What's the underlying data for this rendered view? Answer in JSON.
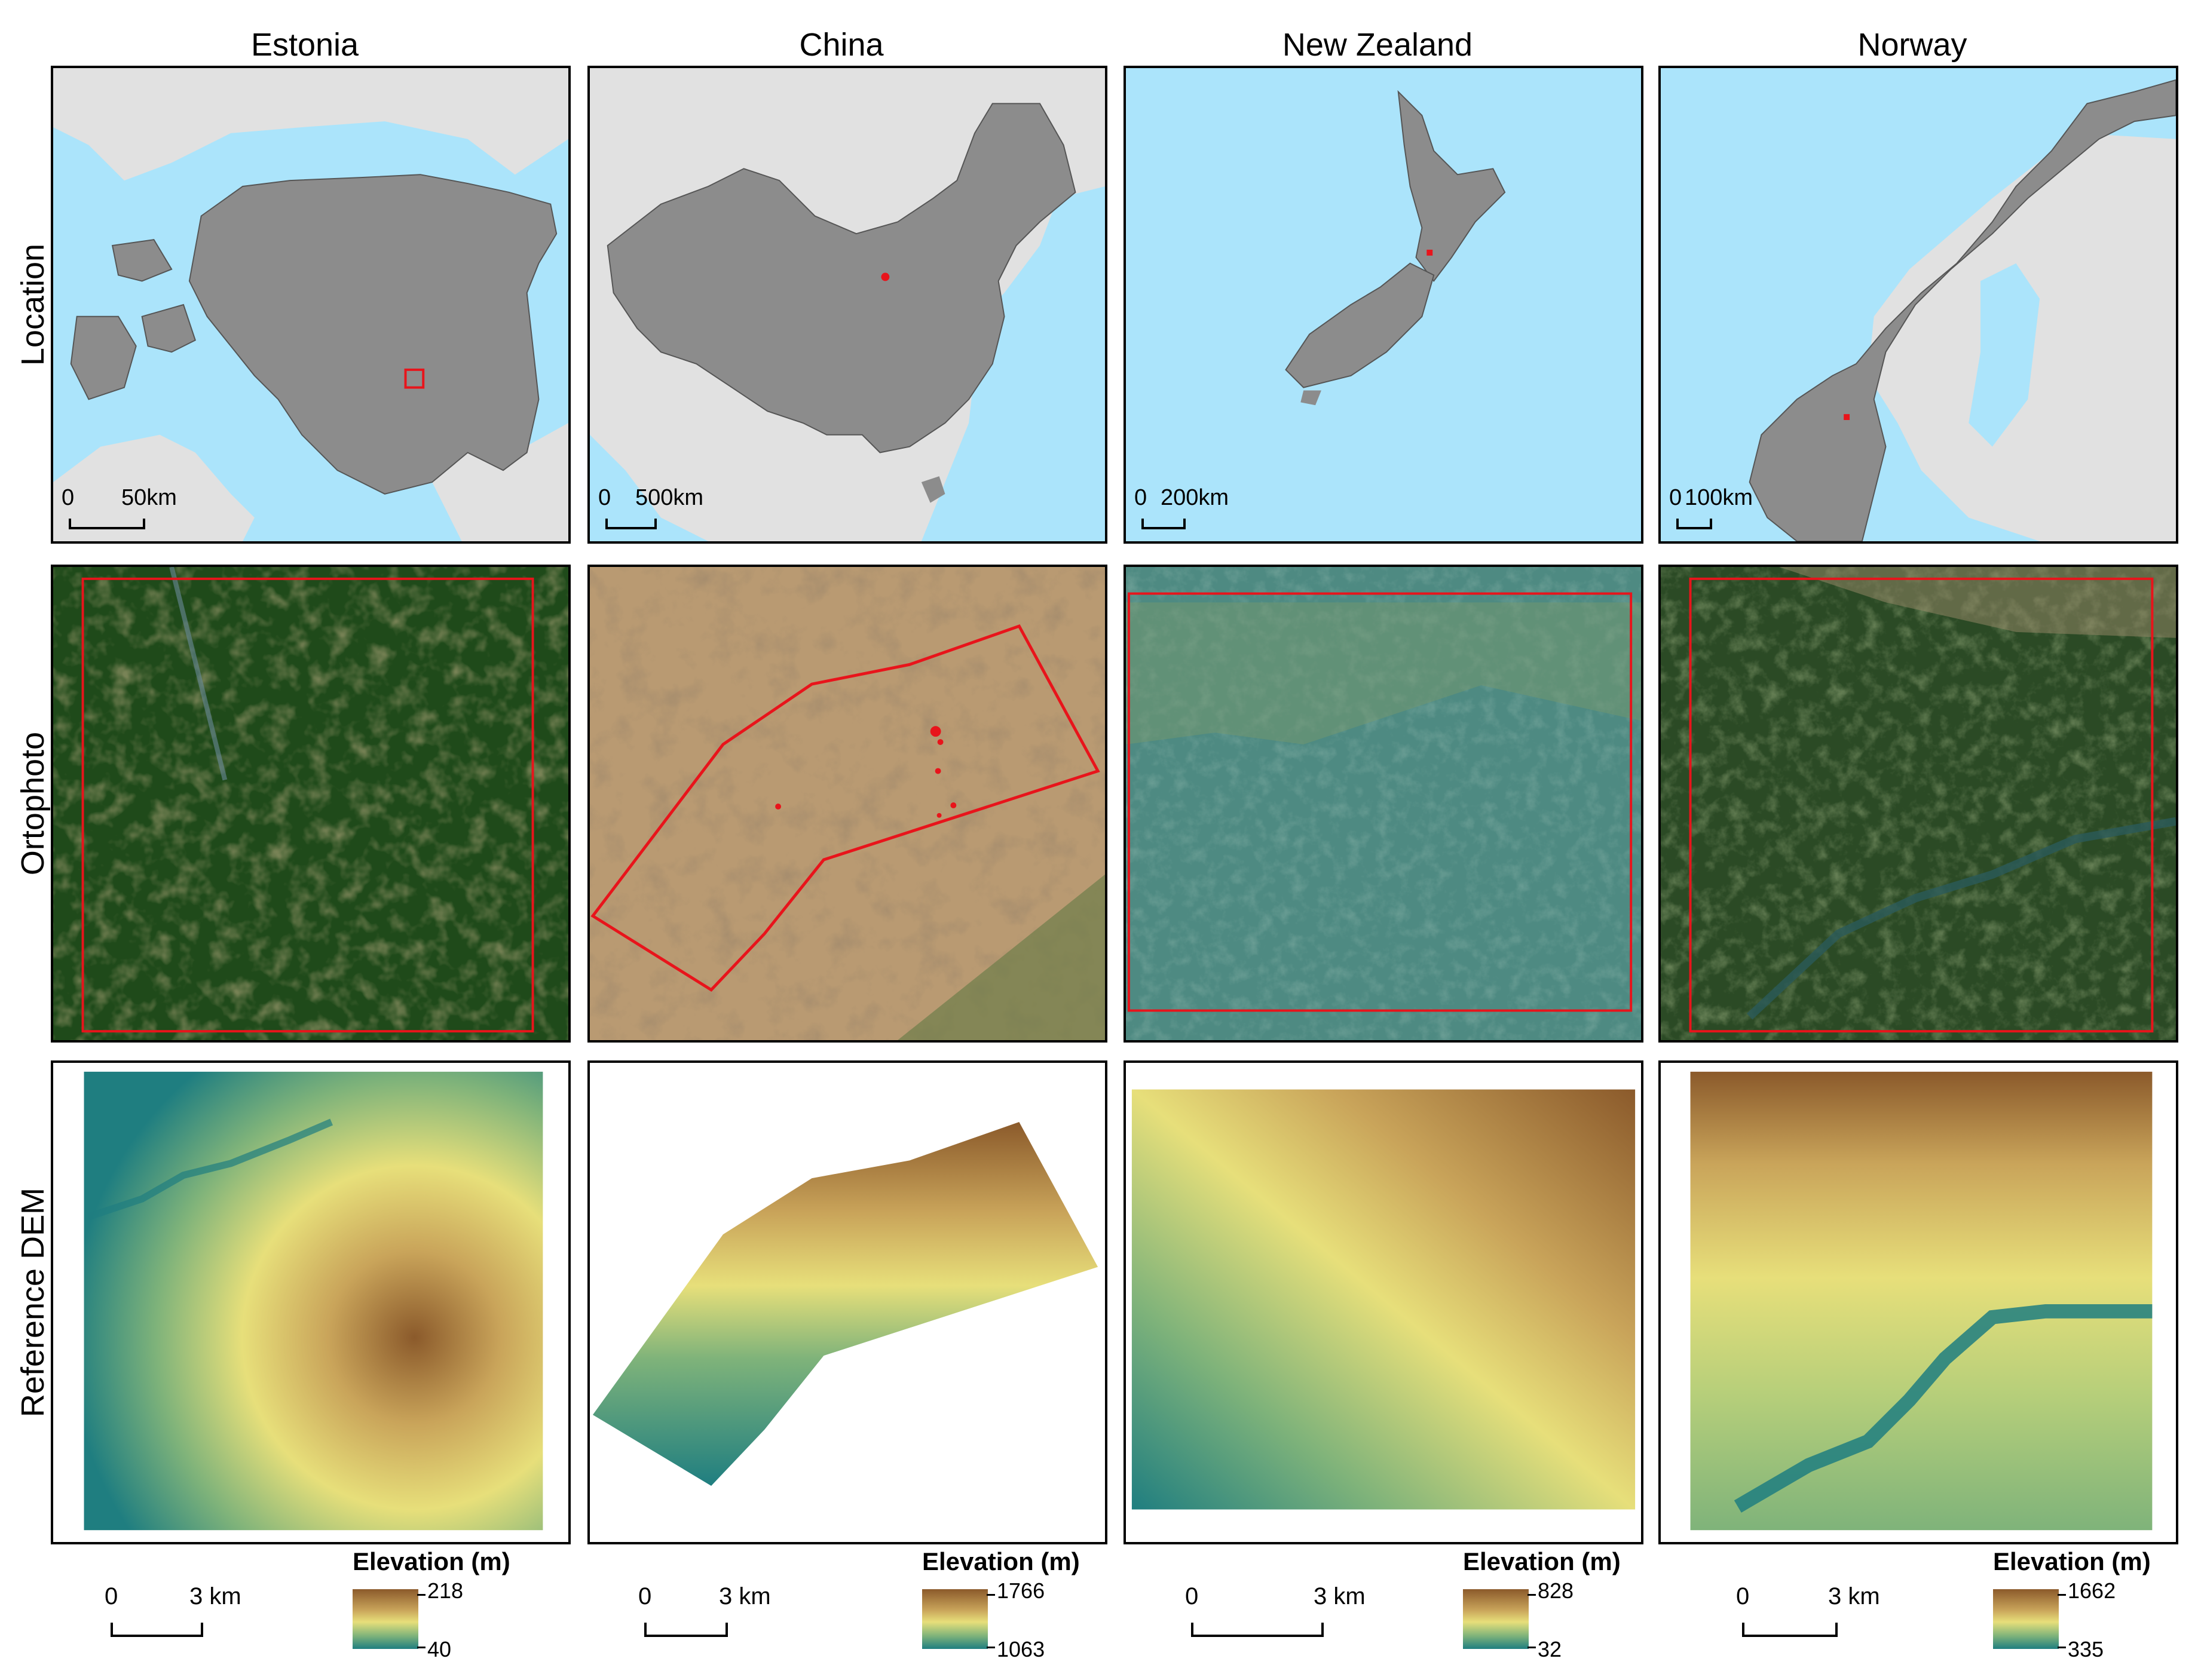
{
  "columns": [
    {
      "title": "Estonia",
      "location_scale": {
        "zero": "0",
        "dist": "50km"
      },
      "bottom_scale": {
        "zero": "0",
        "dist": "3 km"
      },
      "legend": {
        "title": "Elevation (m)",
        "max": "218",
        "min": "40"
      }
    },
    {
      "title": "China",
      "location_scale": {
        "zero": "0",
        "dist": "500km"
      },
      "bottom_scale": {
        "zero": "0",
        "dist": "3 km"
      },
      "legend": {
        "title": "Elevation (m)",
        "max": "1766",
        "min": "1063"
      }
    },
    {
      "title": "New Zealand",
      "location_scale": {
        "zero": "0",
        "dist": "200km"
      },
      "bottom_scale": {
        "zero": "0",
        "dist": "3 km"
      },
      "legend": {
        "title": "Elevation (m)",
        "max": "828",
        "min": "32"
      }
    },
    {
      "title": "Norway",
      "location_scale": {
        "zero": "0",
        "dist": "100km"
      },
      "bottom_scale": {
        "zero": "0",
        "dist": "3 km"
      },
      "legend": {
        "title": "Elevation (m)",
        "max": "1662",
        "min": "335"
      }
    }
  ],
  "rows": {
    "location": "Location",
    "orthophoto": "Ortophoto",
    "dem": "Reference DEM"
  },
  "colors": {
    "sea": "#abe4fb",
    "land": "#e1e1e1",
    "country": "#8c8c8c",
    "study_area": "#e8141b",
    "dem_high": "#8b5a2b",
    "dem_mid": "#e7df7a",
    "dem_low": "#1f7e80"
  }
}
